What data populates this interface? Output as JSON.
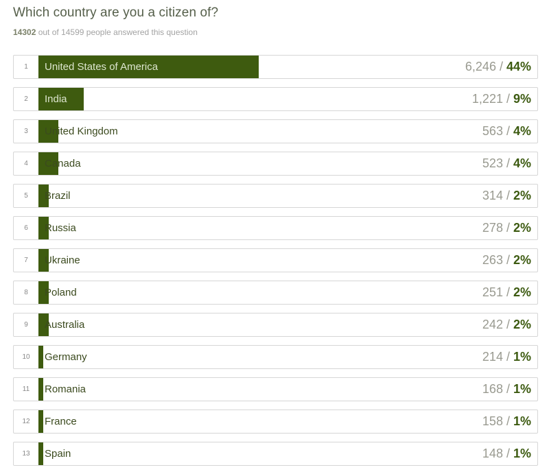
{
  "title": "Which country are you a citizen of?",
  "subtitle": {
    "answered": "14302",
    "rest": " out of 14599 people answered this question"
  },
  "colors": {
    "bar": "#3e5b0f",
    "title": "#555f4a",
    "count": "#999a90",
    "percent": "#3c5a10"
  },
  "chart_data": {
    "type": "bar",
    "orientation": "horizontal",
    "title": "Which country are you a citizen of?",
    "xlim": [
      0,
      100
    ],
    "categories": [
      "United States of America",
      "India",
      "United Kingdom",
      "Canada",
      "Brazil",
      "Russia",
      "Ukraine",
      "Poland",
      "Australia",
      "Germany",
      "Romania",
      "France",
      "Spain"
    ],
    "rows": [
      {
        "rank": "1",
        "country": "United States of America",
        "count": 6246,
        "count_label": "6,246",
        "percent": 44,
        "percent_label": "44%"
      },
      {
        "rank": "2",
        "country": "India",
        "count": 1221,
        "count_label": "1,221",
        "percent": 9,
        "percent_label": "9%"
      },
      {
        "rank": "3",
        "country": "United Kingdom",
        "count": 563,
        "count_label": "563",
        "percent": 4,
        "percent_label": "4%"
      },
      {
        "rank": "4",
        "country": "Canada",
        "count": 523,
        "count_label": "523",
        "percent": 4,
        "percent_label": "4%"
      },
      {
        "rank": "5",
        "country": "Brazil",
        "count": 314,
        "count_label": "314",
        "percent": 2,
        "percent_label": "2%"
      },
      {
        "rank": "6",
        "country": "Russia",
        "count": 278,
        "count_label": "278",
        "percent": 2,
        "percent_label": "2%"
      },
      {
        "rank": "7",
        "country": "Ukraine",
        "count": 263,
        "count_label": "263",
        "percent": 2,
        "percent_label": "2%"
      },
      {
        "rank": "8",
        "country": "Poland",
        "count": 251,
        "count_label": "251",
        "percent": 2,
        "percent_label": "2%"
      },
      {
        "rank": "9",
        "country": "Australia",
        "count": 242,
        "count_label": "242",
        "percent": 2,
        "percent_label": "2%"
      },
      {
        "rank": "10",
        "country": "Germany",
        "count": 214,
        "count_label": "214",
        "percent": 1,
        "percent_label": "1%"
      },
      {
        "rank": "11",
        "country": "Romania",
        "count": 168,
        "count_label": "168",
        "percent": 1,
        "percent_label": "1%"
      },
      {
        "rank": "12",
        "country": "France",
        "count": 158,
        "count_label": "158",
        "percent": 1,
        "percent_label": "1%"
      },
      {
        "rank": "13",
        "country": "Spain",
        "count": 148,
        "count_label": "148",
        "percent": 1,
        "percent_label": "1%"
      }
    ]
  }
}
